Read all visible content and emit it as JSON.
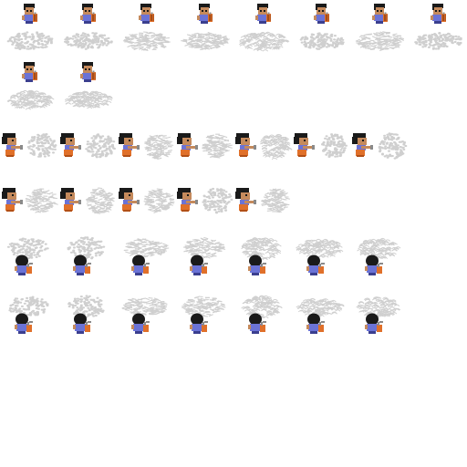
{
  "sprite_sheet": {
    "colors": {
      "background": "#ffffff",
      "spray": "#cfcfcf",
      "hair": "#1a1a1a",
      "skin": "#c58a5c",
      "shirt": "#6b73d6",
      "pants": "#3b3f8f",
      "canister": "#e0702a",
      "nozzle": "#8a8a8a"
    },
    "rows": [
      {
        "direction": "south",
        "frames": [
          {
            "spray": "dots",
            "stage": 1
          },
          {
            "spray": "dots",
            "stage": 2
          },
          {
            "spray": "dashes",
            "stage": 3
          },
          {
            "spray": "dashes",
            "stage": 4
          },
          {
            "spray": "arcs",
            "stage": 5
          },
          {
            "spray": "dots",
            "stage": 6
          },
          {
            "spray": "dashes",
            "stage": 7
          },
          {
            "spray": "dots",
            "stage": 8
          }
        ]
      },
      {
        "direction": "south",
        "frames": [
          {
            "spray": "arcs",
            "stage": 9
          },
          {
            "spray": "arcs",
            "stage": 10
          }
        ]
      },
      {
        "direction": "east",
        "frames": [
          {
            "spray": "dots",
            "stage": 1
          },
          {
            "spray": "dots",
            "stage": 2
          },
          {
            "spray": "dashes",
            "stage": 3
          },
          {
            "spray": "dashes",
            "stage": 4
          },
          {
            "spray": "arcs",
            "stage": 5
          },
          {
            "spray": "dots",
            "stage": 6
          },
          {
            "spray": "dots",
            "stage": 7
          }
        ]
      },
      {
        "direction": "east",
        "frames": [
          {
            "spray": "dashes",
            "stage": 8
          },
          {
            "spray": "dashes",
            "stage": 9
          },
          {
            "spray": "dashes",
            "stage": 10
          },
          {
            "spray": "dots",
            "stage": 11
          },
          {
            "spray": "dashes",
            "stage": 12
          }
        ]
      },
      {
        "direction": "north",
        "frames": [
          {
            "spray": "dots",
            "stage": 1
          },
          {
            "spray": "dots",
            "stage": 2
          },
          {
            "spray": "dashes",
            "stage": 3
          },
          {
            "spray": "dashes",
            "stage": 4
          },
          {
            "spray": "arcs",
            "stage": 5
          },
          {
            "spray": "arcs",
            "stage": 6
          },
          {
            "spray": "arcs",
            "stage": 7
          }
        ]
      },
      {
        "direction": "north",
        "frames": [
          {
            "spray": "dots",
            "stage": 1
          },
          {
            "spray": "dots",
            "stage": 2
          },
          {
            "spray": "dashes",
            "stage": 3
          },
          {
            "spray": "dashes",
            "stage": 4
          },
          {
            "spray": "arcs",
            "stage": 5
          },
          {
            "spray": "arcs",
            "stage": 6
          },
          {
            "spray": "arcs",
            "stage": 7
          }
        ]
      }
    ]
  }
}
